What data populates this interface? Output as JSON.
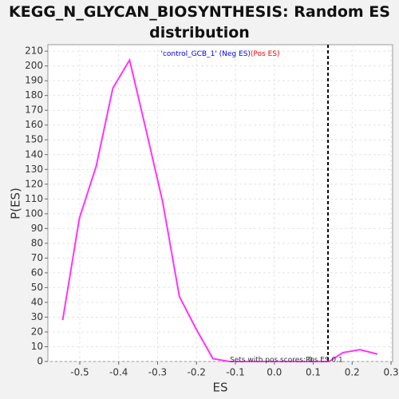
{
  "chart_data": {
    "type": "line",
    "title": "KEGG_N_GLYCAN_BIOSYNTHESIS: Random ES distribution",
    "x_label": "ES",
    "y_label": "P(ES)",
    "x": [
      -0.544,
      -0.501,
      -0.458,
      -0.415,
      -0.372,
      -0.33,
      -0.287,
      -0.244,
      -0.201,
      -0.158,
      -0.116,
      -0.073,
      -0.03,
      0.013,
      0.056,
      0.098,
      0.141,
      0.176,
      0.22,
      0.265
    ],
    "series": [
      {
        "name": "'control_GCB_1' (Neg ES)",
        "color": "#ff33ff",
        "values": [
          28,
          97,
          132,
          185,
          204,
          157,
          108,
          44,
          22,
          2,
          0,
          0,
          0,
          0,
          0,
          0,
          0,
          6,
          8,
          5
        ]
      }
    ],
    "legend": [
      {
        "name": "'control_GCB_1' (Neg ES)",
        "color": "#0000ff"
      },
      {
        "name": "(Pos ES)",
        "color": "#ff0000"
      }
    ],
    "annotations": [
      "Sets with pos scores: 0",
      "Pos ES 0.1"
    ],
    "es_marker": 0.138,
    "xlim": [
      -0.582,
      0.304
    ],
    "xticks": [
      -0.5,
      -0.4,
      -0.3,
      -0.2,
      -0.1,
      {
        "value": 0,
        "label": "0.0"
      },
      0.1,
      0.2,
      0.3
    ],
    "ylim": [
      0,
      214.4
    ],
    "yticks": [
      0,
      10,
      20,
      30,
      40,
      50,
      60,
      70,
      80,
      90,
      100,
      110,
      120,
      130,
      140,
      150,
      160,
      170,
      180,
      190,
      200,
      210
    ],
    "grid": true
  }
}
